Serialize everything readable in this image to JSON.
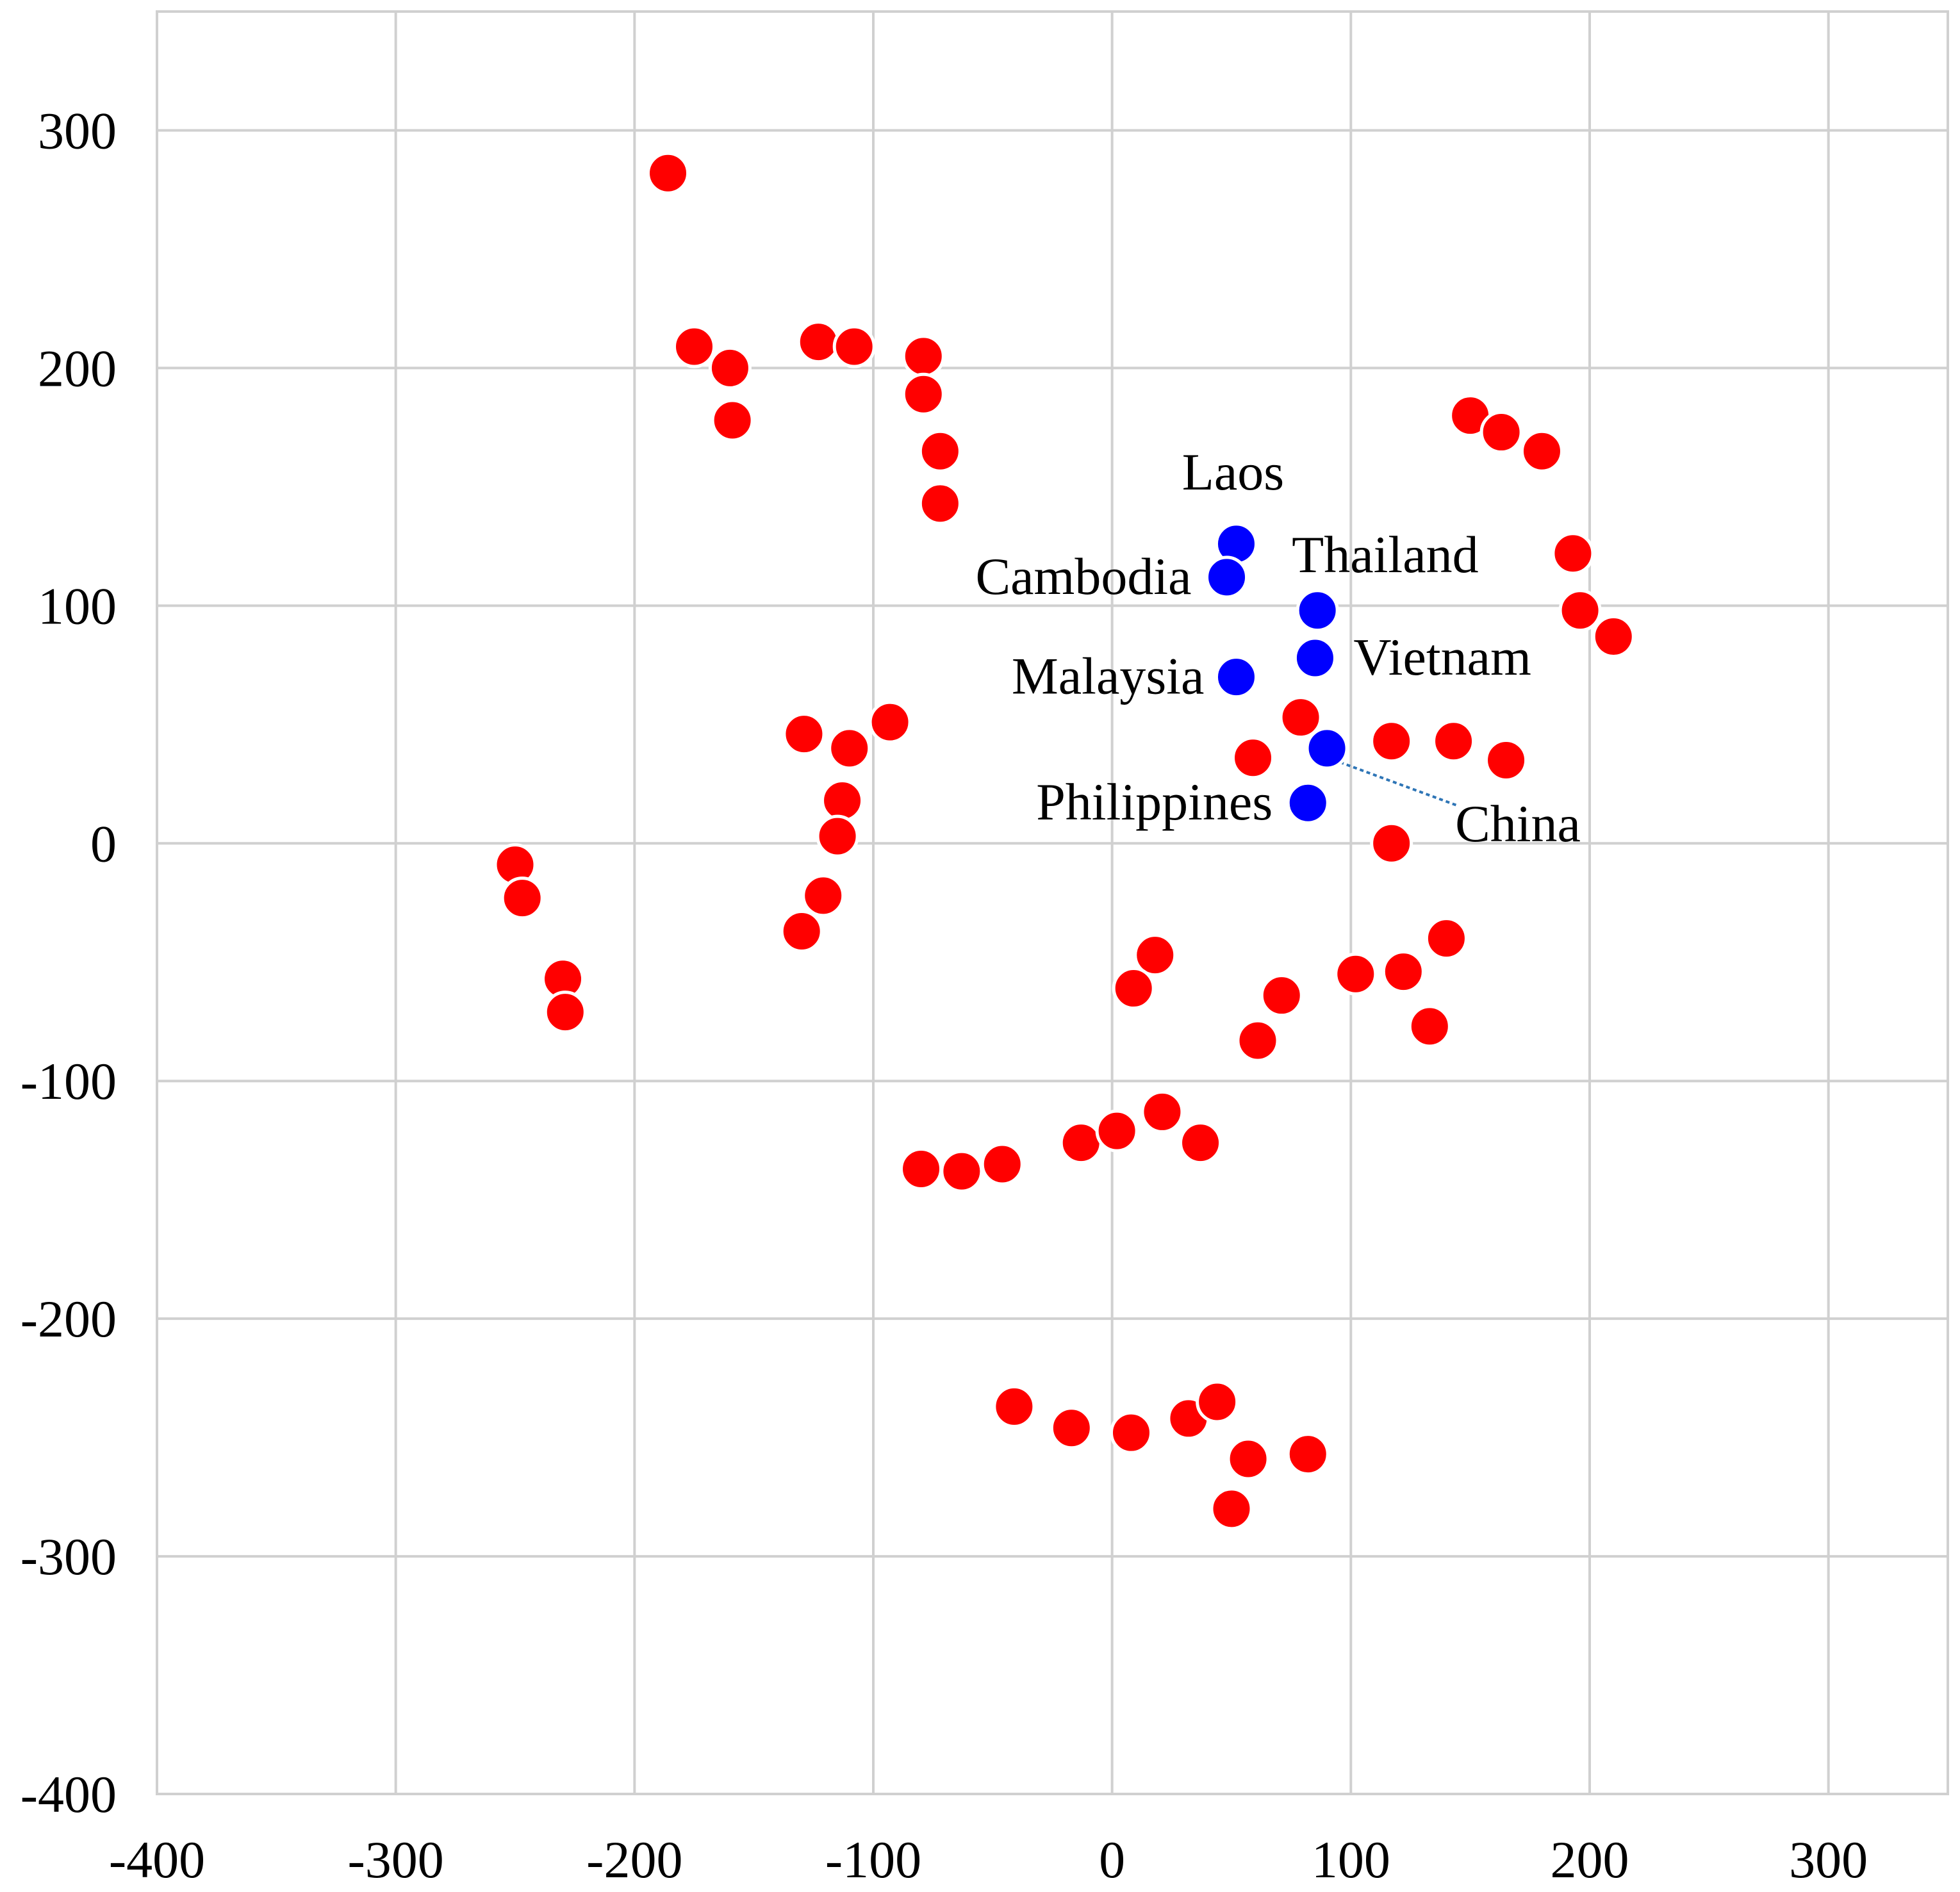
{
  "chart_data": {
    "type": "scatter",
    "title": "",
    "xlabel": "",
    "ylabel": "",
    "xlim": [
      -400,
      350
    ],
    "ylim": [
      -400,
      350
    ],
    "x_ticks": [
      -400,
      -300,
      -200,
      -100,
      0,
      100,
      200,
      300
    ],
    "y_ticks": [
      -400,
      -300,
      -200,
      -100,
      0,
      100,
      200,
      300
    ],
    "grid": true,
    "legend": "none",
    "colors": {
      "others": "#ff0000",
      "highlighted": "#0000ff",
      "grid": "#d0d0d0",
      "connector": "#2e75b6"
    },
    "series": [
      {
        "color": "#ff0000",
        "points": [
          [
            -186,
            282
          ],
          [
            -175,
            209
          ],
          [
            -160,
            200
          ],
          [
            -159,
            178
          ],
          [
            -123,
            211
          ],
          [
            -108,
            209
          ],
          [
            -79,
            205
          ],
          [
            -79,
            189
          ],
          [
            -72,
            165
          ],
          [
            -72,
            143
          ],
          [
            -129,
            46
          ],
          [
            -110,
            40
          ],
          [
            -93,
            51
          ],
          [
            -113,
            18
          ],
          [
            -115,
            3
          ],
          [
            -121,
            -22
          ],
          [
            -130,
            -37
          ],
          [
            -250,
            -9
          ],
          [
            -247,
            -23
          ],
          [
            -230,
            -57
          ],
          [
            -229,
            -71
          ],
          [
            150,
            180
          ],
          [
            163,
            173
          ],
          [
            180,
            165
          ],
          [
            193,
            122
          ],
          [
            196,
            98
          ],
          [
            210,
            87
          ],
          [
            79,
            53
          ],
          [
            59,
            36
          ],
          [
            117,
            43
          ],
          [
            143,
            43
          ],
          [
            165,
            35
          ],
          [
            117,
            0
          ],
          [
            18,
            -47
          ],
          [
            9,
            -61
          ],
          [
            71,
            -64
          ],
          [
            61,
            -83
          ],
          [
            102,
            -55
          ],
          [
            122,
            -54
          ],
          [
            140,
            -40
          ],
          [
            133,
            -77
          ],
          [
            -80,
            -137
          ],
          [
            -63,
            -138
          ],
          [
            -46,
            -135
          ],
          [
            -13,
            -126
          ],
          [
            2,
            -121
          ],
          [
            21,
            -113
          ],
          [
            37,
            -126
          ],
          [
            -41,
            -237
          ],
          [
            -17,
            -246
          ],
          [
            8,
            -248
          ],
          [
            32,
            -242
          ],
          [
            44,
            -235
          ],
          [
            57,
            -259
          ],
          [
            50,
            -280
          ],
          [
            82,
            -257
          ]
        ]
      },
      {
        "color": "#0000ff",
        "points": [
          {
            "x": 52,
            "y": 126,
            "label": "Laos"
          },
          {
            "x": 48,
            "y": 112,
            "label": "Cambodia"
          },
          {
            "x": 86,
            "y": 98,
            "label": "Thailand"
          },
          {
            "x": 85,
            "y": 78,
            "label": "Vietnam"
          },
          {
            "x": 52,
            "y": 70,
            "label": "Malaysia"
          },
          {
            "x": 90,
            "y": 40,
            "label": "China"
          },
          {
            "x": 82,
            "y": 17,
            "label": "Philippines"
          }
        ]
      }
    ]
  }
}
